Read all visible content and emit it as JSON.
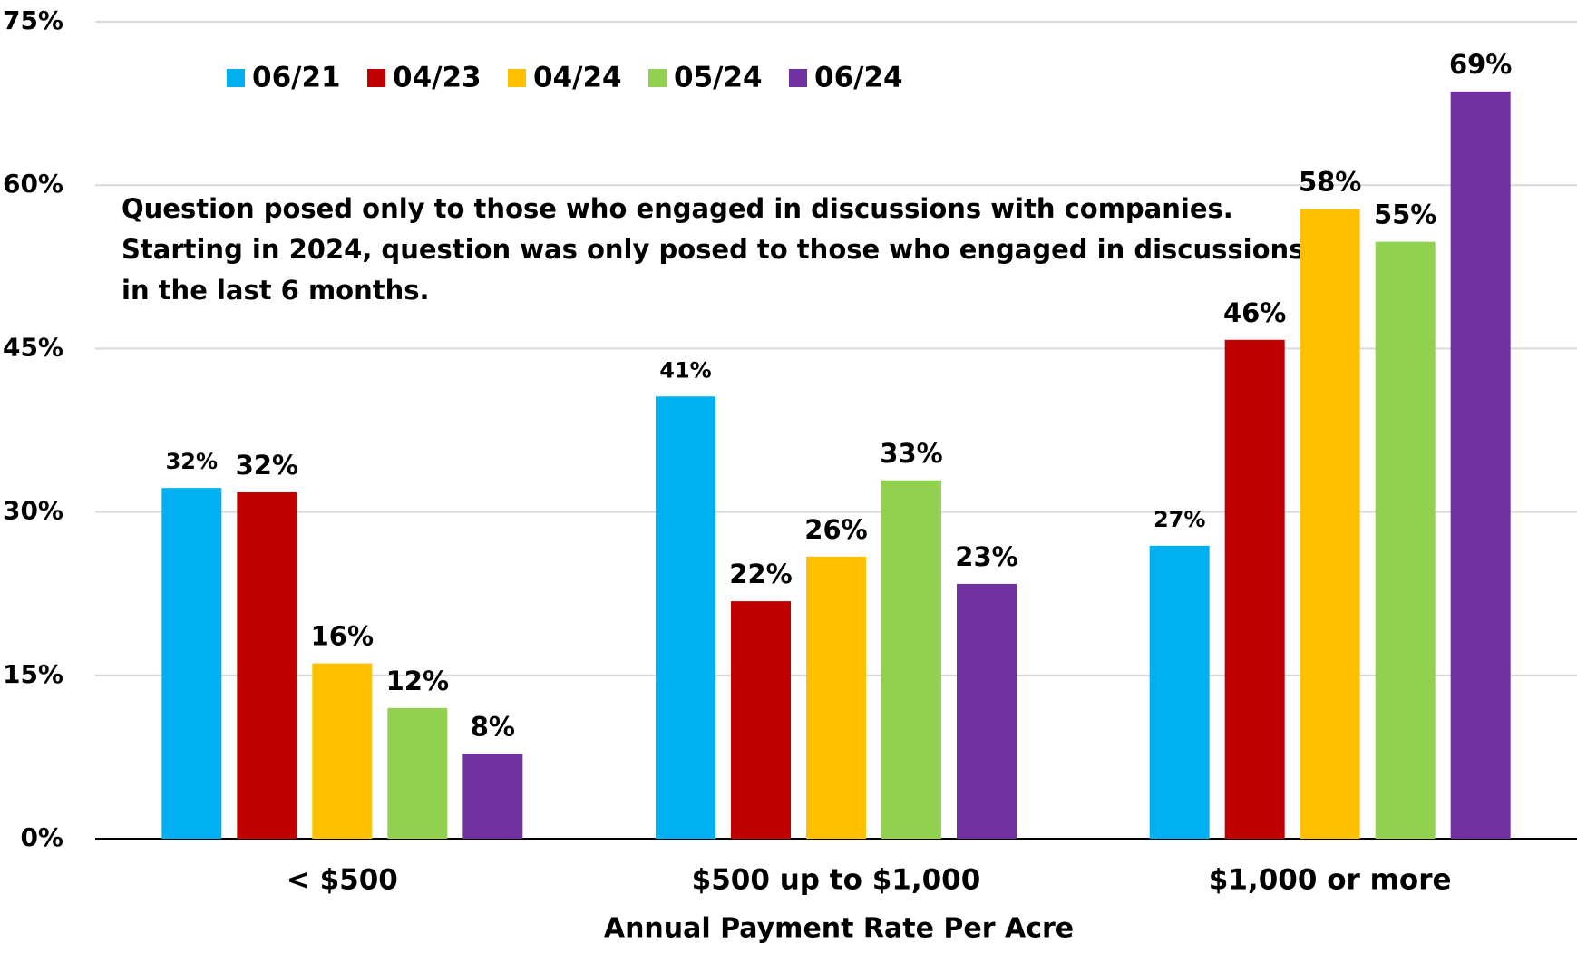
{
  "chart_data": {
    "type": "bar",
    "annotation": [
      "Question posed only to those who engaged  in discussions with companies.",
      "Starting in 2024, question was only posed to those who engaged in discussions",
      "in the last 6 months."
    ],
    "x_label": "Annual Payment Rate Per Acre",
    "categories": [
      "< $500",
      "$500 up to $1,000",
      "$1,000 or more"
    ],
    "series": [
      {
        "name": "06/21",
        "color": "#00b0f0",
        "values": [
          32.2,
          40.6,
          26.9
        ],
        "value_labels": [
          "32%",
          "41%",
          "27%"
        ]
      },
      {
        "name": "04/23",
        "color": "#c00000",
        "values": [
          31.8,
          21.8,
          45.8
        ],
        "value_labels": [
          "32%",
          "22%",
          "46%"
        ]
      },
      {
        "name": "04/24",
        "color": "#ffc000",
        "values": [
          16.1,
          25.9,
          57.8
        ],
        "value_labels": [
          "16%",
          "26%",
          "58%"
        ]
      },
      {
        "name": "05/24",
        "color": "#92d050",
        "values": [
          12.0,
          32.9,
          54.8
        ],
        "value_labels": [
          "12%",
          "33%",
          "55%"
        ]
      },
      {
        "name": "06/24",
        "color": "#7030a0",
        "values": [
          7.8,
          23.4,
          68.6
        ],
        "value_labels": [
          "8%",
          "23%",
          "69%"
        ]
      }
    ],
    "ylim": [
      0,
      75
    ],
    "yticks": [
      {
        "value": 0,
        "label": "0%"
      },
      {
        "value": 15,
        "label": "15%"
      },
      {
        "value": 30,
        "label": "30%"
      },
      {
        "value": 45,
        "label": "45%"
      },
      {
        "value": 60,
        "label": "60%"
      },
      {
        "value": 75,
        "label": "75%"
      }
    ],
    "grid": true,
    "legend": "top-left"
  }
}
